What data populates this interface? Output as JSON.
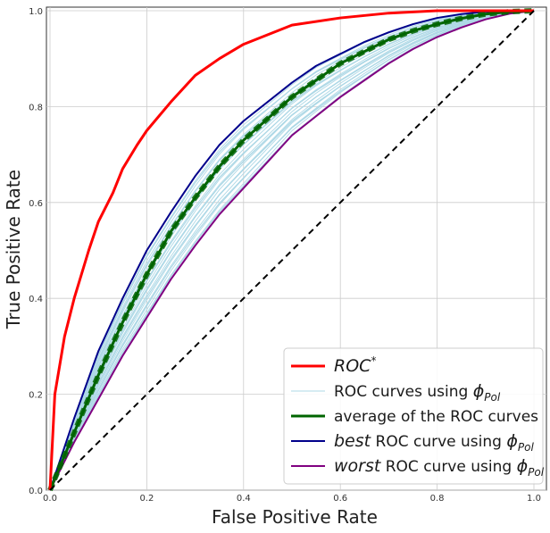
{
  "chart_data": {
    "type": "line",
    "xlabel": "False Positive Rate",
    "ylabel": "True Positive Rate",
    "xlim": [
      0.0,
      1.0
    ],
    "ylim": [
      0.0,
      1.0
    ],
    "x_ticks": [
      "0.0",
      "0.2",
      "0.4",
      "0.6",
      "0.8",
      "1.0"
    ],
    "y_ticks": [
      "0.0",
      "0.2",
      "0.4",
      "0.6",
      "0.8",
      "1.0"
    ],
    "grid": true,
    "legend_position": "lower-right",
    "legend": [
      {
        "prefix": "",
        "emph": "ROC",
        "sup": "*",
        "rest": "",
        "sub": "",
        "color": "#ff0000",
        "width": 3
      },
      {
        "prefix": "ROC curves using ",
        "emph": "",
        "sup": "",
        "rest": "",
        "sub": "Pol",
        "phi": "ϕ",
        "color": "#add8e6",
        "width": 1
      },
      {
        "prefix": "average of the ROC curves",
        "emph": "",
        "sup": "",
        "rest": "",
        "sub": "",
        "color": "#006400",
        "width": 3
      },
      {
        "prefix": "",
        "emph": "best",
        "sup": "",
        "rest": " ROC curve using ",
        "sub": "Pol",
        "phi": "ϕ",
        "color": "#00008b",
        "width": 2
      },
      {
        "prefix": "",
        "emph": "worst",
        "sup": "",
        "rest": " ROC curve using ",
        "sub": "Pol",
        "phi": "ϕ",
        "color": "#800080",
        "width": 2
      }
    ],
    "series": [
      {
        "key": "roc_star",
        "color": "#ff0000",
        "width": 3,
        "x": [
          0,
          0.01,
          0.03,
          0.05,
          0.08,
          0.1,
          0.13,
          0.15,
          0.18,
          0.2,
          0.25,
          0.3,
          0.35,
          0.4,
          0.45,
          0.5,
          0.6,
          0.7,
          0.8,
          1.0
        ],
        "y": [
          0,
          0.2,
          0.32,
          0.4,
          0.5,
          0.56,
          0.62,
          0.67,
          0.72,
          0.75,
          0.81,
          0.865,
          0.9,
          0.93,
          0.95,
          0.97,
          0.985,
          0.995,
          1.0,
          1.0
        ]
      },
      {
        "key": "best",
        "color": "#00008b",
        "width": 2,
        "x": [
          0,
          0.05,
          0.1,
          0.15,
          0.2,
          0.25,
          0.3,
          0.35,
          0.4,
          0.45,
          0.5,
          0.55,
          0.6,
          0.65,
          0.7,
          0.75,
          0.8,
          0.85,
          0.9,
          0.95,
          1.0
        ],
        "y": [
          0,
          0.15,
          0.29,
          0.4,
          0.5,
          0.58,
          0.655,
          0.72,
          0.77,
          0.81,
          0.85,
          0.885,
          0.91,
          0.935,
          0.955,
          0.972,
          0.985,
          0.993,
          0.998,
          1.0,
          1.0
        ]
      },
      {
        "key": "average",
        "color": "#006400",
        "width": 3,
        "dashed_overlay": true,
        "x": [
          0,
          0.05,
          0.1,
          0.15,
          0.2,
          0.25,
          0.3,
          0.35,
          0.4,
          0.45,
          0.5,
          0.55,
          0.6,
          0.65,
          0.7,
          0.75,
          0.8,
          0.85,
          0.9,
          0.95,
          1.0
        ],
        "y": [
          0,
          0.12,
          0.24,
          0.35,
          0.45,
          0.54,
          0.61,
          0.675,
          0.73,
          0.775,
          0.82,
          0.855,
          0.89,
          0.915,
          0.94,
          0.958,
          0.972,
          0.984,
          0.993,
          0.998,
          1.0
        ]
      },
      {
        "key": "worst",
        "color": "#800080",
        "width": 2,
        "x": [
          0,
          0.05,
          0.1,
          0.15,
          0.2,
          0.25,
          0.3,
          0.35,
          0.4,
          0.45,
          0.5,
          0.55,
          0.6,
          0.65,
          0.7,
          0.75,
          0.8,
          0.85,
          0.9,
          0.95,
          1.0
        ],
        "y": [
          0,
          0.1,
          0.19,
          0.28,
          0.36,
          0.44,
          0.51,
          0.575,
          0.63,
          0.685,
          0.74,
          0.78,
          0.82,
          0.855,
          0.89,
          0.92,
          0.945,
          0.965,
          0.982,
          0.994,
          1.0
        ]
      },
      {
        "key": "diagonal",
        "color": "#000000",
        "width": 2,
        "dashed": true,
        "x": [
          0,
          1
        ],
        "y": [
          0,
          1
        ]
      }
    ],
    "pol_curves": {
      "color": "#add8e6",
      "count": 30,
      "y_range_between": [
        "worst",
        "best"
      ]
    }
  }
}
